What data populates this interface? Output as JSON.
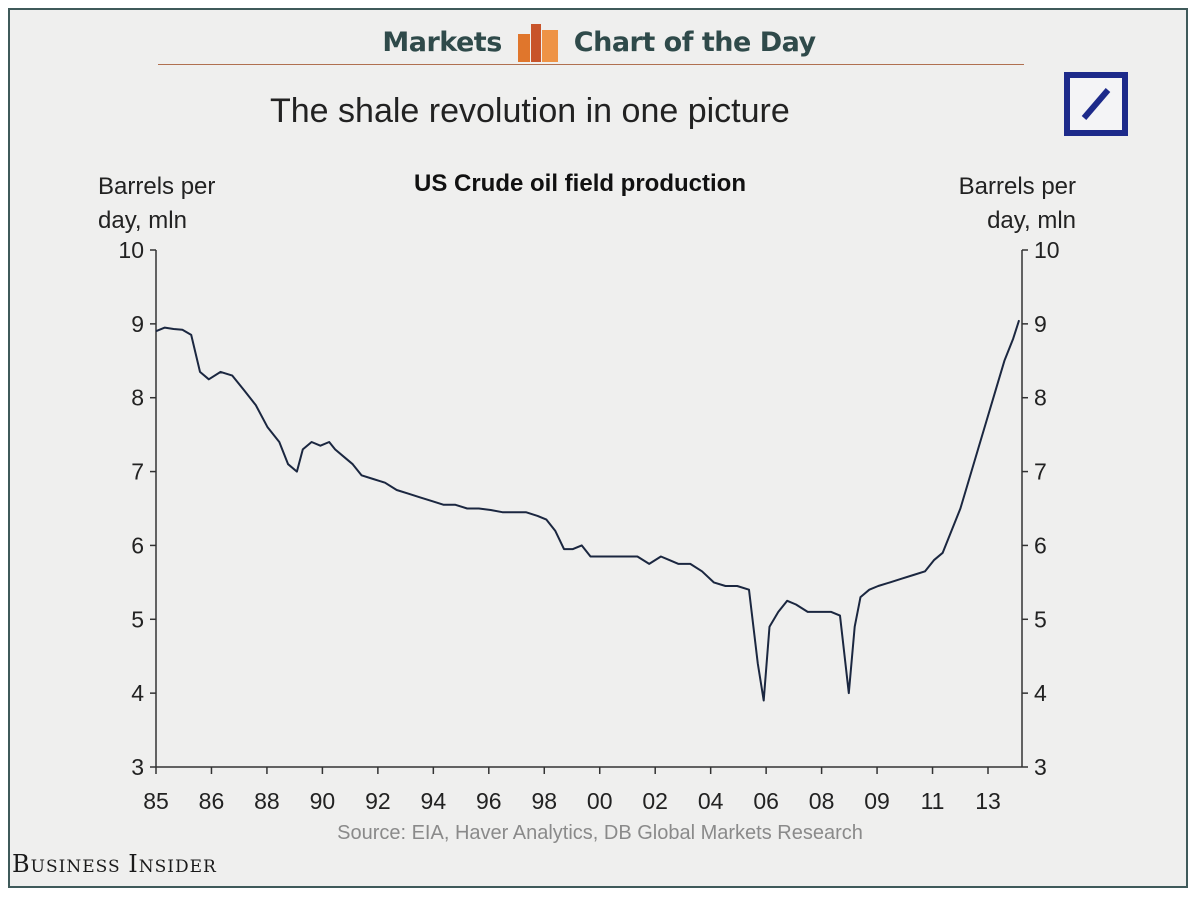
{
  "header": {
    "left_text": "Markets",
    "right_text": "Chart of the Day",
    "logo_icon": "bar-chart-logo-icon",
    "logo_colors": [
      "#e07a2f",
      "#c8542a",
      "#f0a050"
    ]
  },
  "brand_logo_icon": "deutsche-bank-logo-icon",
  "brand_logo_color": "#1d2a8a",
  "title": "The shale revolution in one picture",
  "subtitle": "US Crude oil field production",
  "ylabel_left": [
    "Barrels per",
    "day, mln"
  ],
  "ylabel_right": [
    "Barrels per",
    "day, mln"
  ],
  "source": "Source: EIA, Haver Analytics, DB Global Markets Research",
  "footer_brand": "Business Insider",
  "chart_data": {
    "type": "line",
    "title": "US Crude oil field production",
    "ylabel": "Barrels per day, mln",
    "y2label": "Barrels per day, mln",
    "ylim": [
      3,
      10
    ],
    "xlim": [
      1985,
      2014.5
    ],
    "yticks": [
      3,
      4,
      5,
      6,
      7,
      8,
      9,
      10
    ],
    "xtick_labels": [
      "85",
      "86",
      "88",
      "90",
      "92",
      "94",
      "96",
      "98",
      "00",
      "02",
      "04",
      "06",
      "08",
      "09",
      "11",
      "13"
    ],
    "grid": false,
    "line_color": "#1b2740",
    "series": [
      {
        "x": [
          1985.0,
          1985.3,
          1985.6,
          1985.9,
          1986.2,
          1986.5,
          1986.8,
          1987.2,
          1987.6,
          1988.0,
          1988.4,
          1988.8,
          1989.2,
          1989.5,
          1989.8,
          1990.0,
          1990.3,
          1990.6,
          1990.9,
          1991.1,
          1991.4,
          1991.7,
          1992.0,
          1992.4,
          1992.8,
          1993.2,
          1993.6,
          1994.0,
          1994.4,
          1994.8,
          1995.2,
          1995.6,
          1996.0,
          1996.4,
          1996.8,
          1997.2,
          1997.6,
          1998.0,
          1998.3,
          1998.6,
          1998.9,
          1999.2,
          1999.5,
          1999.8,
          2000.2,
          2000.6,
          2001.0,
          2001.4,
          2001.8,
          2002.2,
          2002.5,
          2002.8,
          2003.2,
          2003.6,
          2004.0,
          2004.4,
          2004.8,
          2005.2,
          2005.5,
          2005.7,
          2005.9,
          2006.2,
          2006.5,
          2006.8,
          2007.2,
          2007.6,
          2008.0,
          2008.3,
          2008.6,
          2008.8,
          2009.0,
          2009.3,
          2009.6,
          2010.0,
          2010.4,
          2010.8,
          2011.2,
          2011.5,
          2011.8,
          2012.0,
          2012.2,
          2012.4,
          2012.7,
          2013.0,
          2013.3,
          2013.6,
          2013.9,
          2014.2,
          2014.4
        ],
        "values": [
          8.9,
          8.95,
          8.93,
          8.92,
          8.85,
          8.35,
          8.25,
          8.35,
          8.3,
          8.1,
          7.9,
          7.6,
          7.4,
          7.1,
          7.0,
          7.3,
          7.4,
          7.35,
          7.4,
          7.3,
          7.2,
          7.1,
          6.95,
          6.9,
          6.85,
          6.75,
          6.7,
          6.65,
          6.6,
          6.55,
          6.55,
          6.5,
          6.5,
          6.48,
          6.45,
          6.45,
          6.45,
          6.4,
          6.35,
          6.2,
          5.95,
          5.95,
          6.0,
          5.85,
          5.85,
          5.85,
          5.85,
          5.85,
          5.75,
          5.85,
          5.8,
          5.75,
          5.75,
          5.65,
          5.5,
          5.45,
          5.45,
          5.4,
          4.4,
          3.9,
          4.9,
          5.1,
          5.25,
          5.2,
          5.1,
          5.1,
          5.1,
          5.05,
          4.0,
          4.9,
          5.3,
          5.4,
          5.45,
          5.5,
          5.55,
          5.6,
          5.65,
          5.8,
          5.9,
          6.1,
          6.3,
          6.5,
          6.9,
          7.3,
          7.7,
          8.1,
          8.5,
          8.8,
          9.05
        ]
      }
    ]
  }
}
